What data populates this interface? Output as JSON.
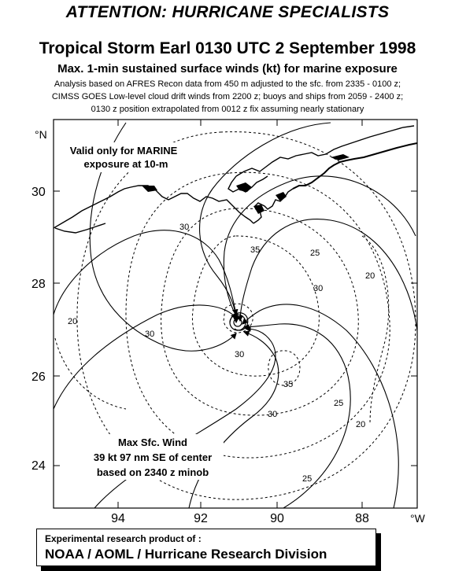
{
  "header": {
    "banner": "ATTENTION: HURRICANE SPECIALISTS",
    "title": "Tropical Storm Earl 0130 UTC 2 September 1998",
    "subtitle": "Max. 1-min sustained surface winds (kt) for marine exposure",
    "analysis_notes": [
      "Analysis based on  AFRES Recon data from 450 m adjusted to the sfc. from 2335 - 0100 z;",
      "CIMSS GOES Low-level cloud drift winds from 2200 z; buoys and ships from 2059 - 2400 z;",
      "0130 z position extrapolated from 0012 z fix assuming  nearly stationary"
    ]
  },
  "map": {
    "validity_note": [
      "Valid only for MARINE",
      "exposure at 10-m"
    ],
    "max_wind_note": [
      "Max Sfc. Wind",
      "39 kt  97 nm SE of center",
      "based on 2340 z minob"
    ],
    "lat_labels": [
      "30",
      "28",
      "26",
      "24"
    ],
    "lon_labels": [
      "94",
      "92",
      "90",
      "88"
    ],
    "north_unit": "°N",
    "west_unit": "°W",
    "contour_labels": [
      "30",
      "35",
      "25",
      "20",
      "30",
      "20",
      "30",
      "30",
      "35",
      "30",
      "25",
      "20",
      "25"
    ],
    "colors": {
      "land": "#000000",
      "contour": "#000000",
      "background": "#ffffff"
    }
  },
  "footer": {
    "line1": "Experimental research product of :",
    "line2": "NOAA / AOML / Hurricane Research Division"
  }
}
